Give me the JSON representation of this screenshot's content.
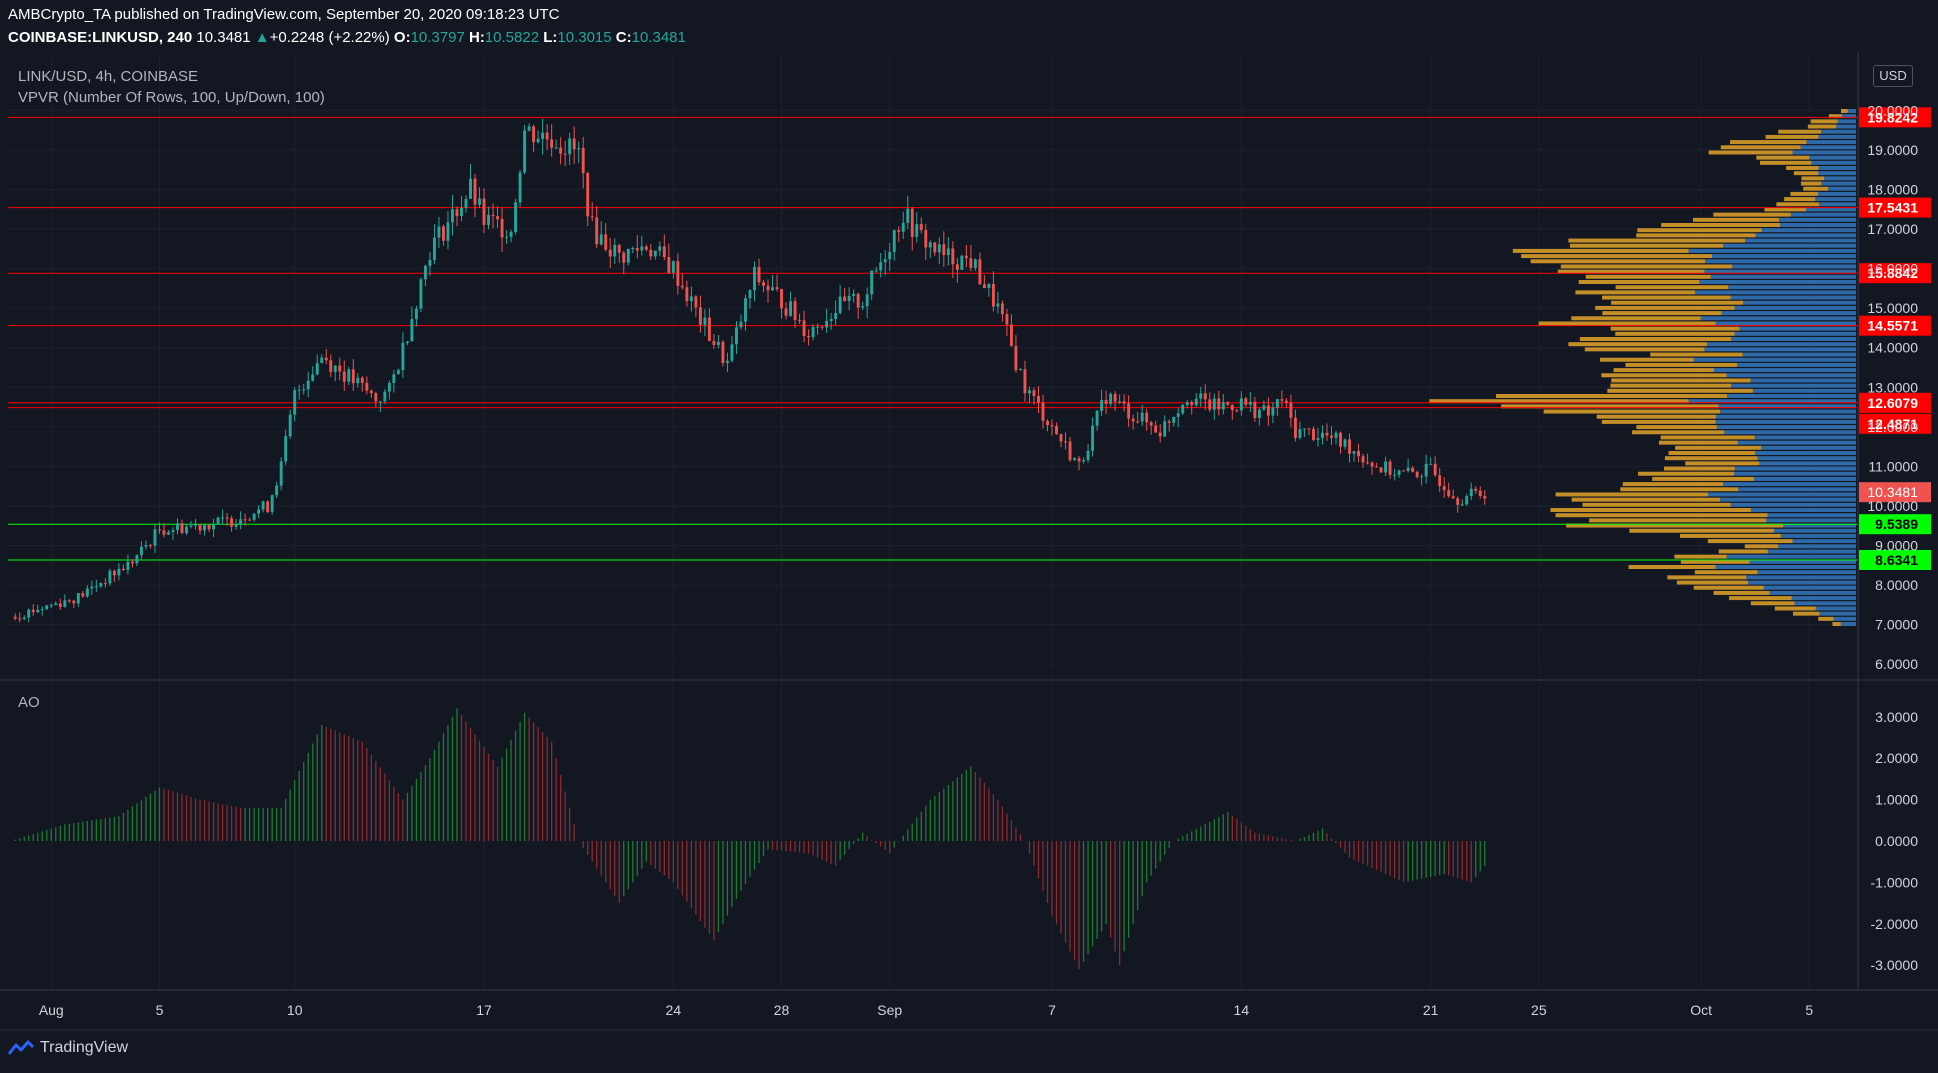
{
  "header": {
    "publisher_line": "AMBCrypto_TA published on TradingView.com, September 20, 2020 09:18:23 UTC",
    "symbol": "COINBASE:LINKUSD, 240",
    "last": "10.3481",
    "change_arrow": "▲",
    "change": "+0.2248 (+2.22%)",
    "o_label": "O:",
    "o": "10.3797",
    "h_label": "H:",
    "h": "10.5822",
    "l_label": "L:",
    "l": "10.3015",
    "c_label": "C:",
    "c": "10.3481"
  },
  "legend": {
    "pair_line": "LINK/USD, 4h, COINBASE",
    "vpvr_line": "VPVR (Number Of Rows, 100, Up/Down, 100)",
    "ao_label": "AO"
  },
  "currency_badge": "USD",
  "footer": {
    "brand": "TradingView"
  },
  "colors": {
    "background": "#131722",
    "up": "#26a69a",
    "down": "#ef5350",
    "resistance": "#ff0000",
    "support": "#00ff00",
    "vpvr_up": "#2f6aa8",
    "vpvr_down": "#c58f28",
    "ao_up": "#1e7b32",
    "ao_down": "#8b2a2e"
  },
  "chart_data": {
    "type": "candlestick",
    "symbol": "LINK/USD",
    "timeframe": "4h",
    "exchange": "COINBASE",
    "price_axis_ticks": [
      "6.0000",
      "7.0000",
      "8.0000",
      "9.0000",
      "10.0000",
      "11.0000",
      "12.0000",
      "13.0000",
      "14.0000",
      "15.0000",
      "16.0000",
      "17.0000",
      "18.0000",
      "19.0000",
      "20.0000"
    ],
    "price_range": [
      5.6,
      21.4
    ],
    "time_axis_labels": [
      {
        "label": "Aug",
        "day": 0
      },
      {
        "label": "5",
        "day": 4
      },
      {
        "label": "10",
        "day": 9
      },
      {
        "label": "17",
        "day": 16
      },
      {
        "label": "24",
        "day": 23
      },
      {
        "label": "28",
        "day": 27
      },
      {
        "label": "Sep",
        "day": 31
      },
      {
        "label": "7",
        "day": 37
      },
      {
        "label": "14",
        "day": 44
      },
      {
        "label": "21",
        "day": 51
      },
      {
        "label": "25",
        "day": 55
      },
      {
        "label": "Oct",
        "day": 61
      },
      {
        "label": "5",
        "day": 65
      }
    ],
    "time_range_days": [
      -1.6,
      66.8
    ],
    "price_keypoints": [
      [
        -1.5,
        7.2
      ],
      [
        1.0,
        7.7
      ],
      [
        3.0,
        8.6
      ],
      [
        4.0,
        9.4
      ],
      [
        6.5,
        9.6
      ],
      [
        8.0,
        10.0
      ],
      [
        8.5,
        11.0
      ],
      [
        9.0,
        12.8
      ],
      [
        10.0,
        13.8
      ],
      [
        12.0,
        12.7
      ],
      [
        12.5,
        12.9
      ],
      [
        13.0,
        14.0
      ],
      [
        14.0,
        16.5
      ],
      [
        15.5,
        18.0
      ],
      [
        16.0,
        17.2
      ],
      [
        17.0,
        17.0
      ],
      [
        17.5,
        19.5
      ],
      [
        18.5,
        19.3
      ],
      [
        19.5,
        18.9
      ],
      [
        20.0,
        17.0
      ],
      [
        21.0,
        16.3
      ],
      [
        22.0,
        16.6
      ],
      [
        23.0,
        16.0
      ],
      [
        24.0,
        14.7
      ],
      [
        25.0,
        13.6
      ],
      [
        26.0,
        15.8
      ],
      [
        27.0,
        15.2
      ],
      [
        28.0,
        14.4
      ],
      [
        29.0,
        15.0
      ],
      [
        30.0,
        15.2
      ],
      [
        31.5,
        17.4
      ],
      [
        32.0,
        16.9
      ],
      [
        33.0,
        16.3
      ],
      [
        34.0,
        16.2
      ],
      [
        35.0,
        15.0
      ],
      [
        35.5,
        14.0
      ],
      [
        36.0,
        13.0
      ],
      [
        37.0,
        12.0
      ],
      [
        38.0,
        11.0
      ],
      [
        39.0,
        12.8
      ],
      [
        40.0,
        12.3
      ],
      [
        41.0,
        11.9
      ],
      [
        42.0,
        12.8
      ],
      [
        43.0,
        12.5
      ],
      [
        44.0,
        12.6
      ],
      [
        45.0,
        12.3
      ],
      [
        45.5,
        12.7
      ],
      [
        46.0,
        11.9
      ],
      [
        47.0,
        11.8
      ],
      [
        48.0,
        11.5
      ],
      [
        49.0,
        11.0
      ],
      [
        50.0,
        10.8
      ],
      [
        51.0,
        10.9
      ],
      [
        52.0,
        10.2
      ],
      [
        53.0,
        10.35
      ]
    ],
    "last_price": 10.3481,
    "horizontal_levels": [
      {
        "price": 19.8242,
        "label": "19.8242",
        "kind": "resistance"
      },
      {
        "price": 17.5431,
        "label": "17.5431",
        "kind": "resistance"
      },
      {
        "price": 15.8842,
        "label": "15.8842",
        "kind": "resistance"
      },
      {
        "price": 14.5571,
        "label": "14.5571",
        "kind": "resistance"
      },
      {
        "price": 12.6079,
        "label": "12.6079",
        "kind": "resistance"
      },
      {
        "price": 12.4871,
        "label": "12.4871",
        "kind": "resistance"
      },
      {
        "price": 9.5389,
        "label": "9.5389",
        "kind": "support"
      },
      {
        "price": 8.6341,
        "label": "8.6341",
        "kind": "support"
      }
    ],
    "last_price_label": "10.3481",
    "vpvr": {
      "rows": 100,
      "profile_keypoints": [
        {
          "price": 7.0,
          "up": 0.02,
          "down": 0.01
        },
        {
          "price": 7.5,
          "up": 0.08,
          "down": 0.06
        },
        {
          "price": 8.0,
          "up": 0.14,
          "down": 0.12
        },
        {
          "price": 8.6,
          "up": 0.18,
          "down": 0.1
        },
        {
          "price": 9.0,
          "up": 0.1,
          "down": 0.05
        },
        {
          "price": 9.5,
          "up": 0.12,
          "down": 0.28
        },
        {
          "price": 10.0,
          "up": 0.18,
          "down": 0.24
        },
        {
          "price": 10.5,
          "up": 0.2,
          "down": 0.18
        },
        {
          "price": 11.0,
          "up": 0.14,
          "down": 0.1
        },
        {
          "price": 11.5,
          "up": 0.15,
          "down": 0.14
        },
        {
          "price": 12.0,
          "up": 0.17,
          "down": 0.1
        },
        {
          "price": 12.6,
          "up": 0.23,
          "down": 0.36
        },
        {
          "price": 13.0,
          "up": 0.17,
          "down": 0.18
        },
        {
          "price": 13.5,
          "up": 0.2,
          "down": 0.14
        },
        {
          "price": 14.0,
          "up": 0.2,
          "down": 0.16
        },
        {
          "price": 14.5,
          "up": 0.2,
          "down": 0.23
        },
        {
          "price": 15.0,
          "up": 0.19,
          "down": 0.2
        },
        {
          "price": 15.5,
          "up": 0.21,
          "down": 0.2
        },
        {
          "price": 16.0,
          "up": 0.22,
          "down": 0.22
        },
        {
          "price": 16.5,
          "up": 0.22,
          "down": 0.24
        },
        {
          "price": 17.0,
          "up": 0.15,
          "down": 0.19
        },
        {
          "price": 17.5,
          "up": 0.07,
          "down": 0.06
        },
        {
          "price": 18.0,
          "up": 0.04,
          "down": 0.03
        },
        {
          "price": 18.5,
          "up": 0.05,
          "down": 0.03
        },
        {
          "price": 19.0,
          "up": 0.08,
          "down": 0.13
        },
        {
          "price": 19.5,
          "up": 0.04,
          "down": 0.05
        },
        {
          "price": 20.0,
          "up": 0.01,
          "down": 0.01
        }
      ]
    },
    "ao": {
      "label": "AO",
      "axis_ticks": [
        "3.0000",
        "2.0000",
        "1.0000",
        "0.0000",
        "-1.0000",
        "-2.0000",
        "-3.0000"
      ],
      "value_range": [
        -3.6,
        3.6
      ],
      "keypoints": [
        [
          -1.5,
          0.0
        ],
        [
          0.5,
          0.4
        ],
        [
          2.5,
          0.6
        ],
        [
          4.0,
          1.3
        ],
        [
          5.5,
          1.0
        ],
        [
          7.0,
          0.8
        ],
        [
          8.5,
          0.8
        ],
        [
          10.0,
          2.8
        ],
        [
          11.5,
          2.4
        ],
        [
          13.0,
          1.0
        ],
        [
          14.0,
          2.0
        ],
        [
          15.0,
          3.2
        ],
        [
          16.5,
          1.8
        ],
        [
          17.5,
          3.1
        ],
        [
          18.5,
          2.4
        ],
        [
          19.5,
          0.0
        ],
        [
          20.0,
          -0.5
        ],
        [
          21.0,
          -1.5
        ],
        [
          22.0,
          -0.5
        ],
        [
          23.0,
          -1.0
        ],
        [
          24.5,
          -2.4
        ],
        [
          25.5,
          -1.2
        ],
        [
          26.5,
          -0.2
        ],
        [
          28.0,
          -0.3
        ],
        [
          29.0,
          -0.6
        ],
        [
          30.0,
          0.2
        ],
        [
          31.0,
          -0.3
        ],
        [
          32.5,
          1.0
        ],
        [
          34.0,
          1.8
        ],
        [
          35.0,
          1.0
        ],
        [
          36.0,
          0.0
        ],
        [
          37.0,
          -1.8
        ],
        [
          38.0,
          -3.1
        ],
        [
          39.0,
          -2.0
        ],
        [
          39.5,
          -3.0
        ],
        [
          40.5,
          -1.0
        ],
        [
          41.5,
          0.0
        ],
        [
          43.5,
          0.7
        ],
        [
          44.5,
          0.2
        ],
        [
          46.0,
          0.0
        ],
        [
          47.0,
          0.3
        ],
        [
          48.0,
          -0.4
        ],
        [
          50.0,
          -1.0
        ],
        [
          51.5,
          -0.8
        ],
        [
          52.5,
          -1.0
        ],
        [
          53.0,
          -0.6
        ]
      ]
    }
  }
}
